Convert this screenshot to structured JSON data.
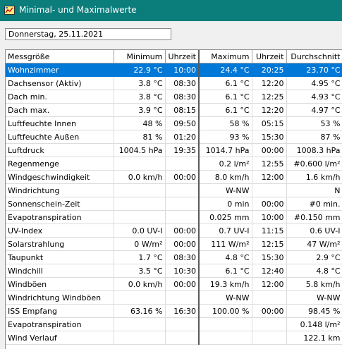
{
  "window": {
    "title": "Minimal- und Maximalwerte",
    "icon": "app-icon"
  },
  "date": "Donnerstag, 25.11.2021",
  "columns": [
    "Messgröße",
    "Minimum",
    "Uhrzeit",
    "Maximum",
    "Uhrzeit",
    "Durchschnitt"
  ],
  "rows": [
    {
      "name": "Wohnzimmer",
      "min": "22.9 °C",
      "min_time": "10:00",
      "max": "24.4 °C",
      "max_time": "20:25",
      "avg": "23.70 °C",
      "selected": true
    },
    {
      "name": "Dachsensor (Aktiv)",
      "min": "3.8 °C",
      "min_time": "08:30",
      "max": "6.1 °C",
      "max_time": "12:20",
      "avg": "4.95 °C"
    },
    {
      "name": "Dach min.",
      "min": "3.8 °C",
      "min_time": "08:30",
      "max": "6.1 °C",
      "max_time": "12:25",
      "avg": "4.93 °C"
    },
    {
      "name": "Dach max.",
      "min": "3.9 °C",
      "min_time": "08:15",
      "max": "6.1 °C",
      "max_time": "12:20",
      "avg": "4.97 °C"
    },
    {
      "name": "Luftfeuchte Innen",
      "min": "48 %",
      "min_time": "09:50",
      "max": "58 %",
      "max_time": "05:15",
      "avg": "53 %"
    },
    {
      "name": "Luftfeuchte Außen",
      "min": "81 %",
      "min_time": "01:20",
      "max": "93 %",
      "max_time": "15:30",
      "avg": "87 %"
    },
    {
      "name": "Luftdruck",
      "min": "1004.5 hPa",
      "min_time": "19:35",
      "max": "1014.7 hPa",
      "max_time": "00:00",
      "avg": "1008.3 hPa"
    },
    {
      "name": "Regenmenge",
      "min": "",
      "min_time": "",
      "max": "0.2 l/m²",
      "max_time": "12:55",
      "avg": "#0.600 l/m²"
    },
    {
      "name": "Windgeschwindigkeit",
      "min": "0.0 km/h",
      "min_time": "00:00",
      "max": "8.0 km/h",
      "max_time": "12:00",
      "avg": "1.6 km/h"
    },
    {
      "name": "Windrichtung",
      "min": "",
      "min_time": "",
      "max": "W-NW",
      "max_time": "",
      "avg": "N"
    },
    {
      "name": "Sonnenschein-Zeit",
      "min": "",
      "min_time": "",
      "max": "0 min",
      "max_time": "00:00",
      "avg": "#0 min."
    },
    {
      "name": "Evapotranspiration",
      "min": "",
      "min_time": "",
      "max": "0.025 mm",
      "max_time": "10:00",
      "avg": "#0.150 mm"
    },
    {
      "name": "UV-Index",
      "min": "0.0 UV-I",
      "min_time": "00:00",
      "max": "0.7 UV-I",
      "max_time": "11:15",
      "avg": "0.6 UV-I"
    },
    {
      "name": "Solarstrahlung",
      "min": "0 W/m²",
      "min_time": "00:00",
      "max": "111 W/m²",
      "max_time": "12:15",
      "avg": "47 W/m²"
    },
    {
      "name": "Taupunkt",
      "min": "1.7 °C",
      "min_time": "08:30",
      "max": "4.8 °C",
      "max_time": "15:30",
      "avg": "2.9 °C"
    },
    {
      "name": "Windchill",
      "min": "3.5 °C",
      "min_time": "10:30",
      "max": "6.1 °C",
      "max_time": "12:40",
      "avg": "4.8 °C"
    },
    {
      "name": "Windböen",
      "min": "0.0 km/h",
      "min_time": "00:00",
      "max": "19.3 km/h",
      "max_time": "12:00",
      "avg": "5.8 km/h"
    },
    {
      "name": "Windrichtung Windböen",
      "min": "",
      "min_time": "",
      "max": "W-NW",
      "max_time": "",
      "avg": "W-NW"
    },
    {
      "name": "ISS Empfang",
      "min": "63.16 %",
      "min_time": "16:30",
      "max": "100.00 %",
      "max_time": "00:00",
      "avg": "98.45 %"
    },
    {
      "name": "Evapotranspiration",
      "min": "",
      "min_time": "",
      "max": "",
      "max_time": "",
      "avg": "0.148 l/m²"
    },
    {
      "name": "Wind Verlauf",
      "min": "",
      "min_time": "",
      "max": "",
      "max_time": "",
      "avg": "122.1 km"
    }
  ]
}
